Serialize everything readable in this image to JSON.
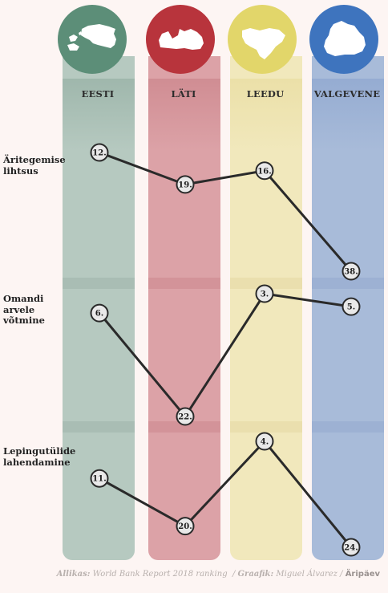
{
  "colors": {
    "eesti": "#5c8e78",
    "lati": "#b8343c",
    "leedu": "#e2d66a",
    "valgevene": "#3e74be"
  },
  "countries": [
    {
      "label": "EESTI",
      "icon": "estonia-map-icon"
    },
    {
      "label": "LÄTI",
      "icon": "latvia-map-icon"
    },
    {
      "label": "LEEDU",
      "icon": "lithuania-map-icon"
    },
    {
      "label": "VALGEVENE",
      "icon": "belarus-map-icon"
    }
  ],
  "chart_data": {
    "type": "line",
    "categories": [
      "EESTI",
      "LÄTI",
      "LEEDU",
      "VALGEVENE"
    ],
    "series": [
      {
        "name": "Äritegemise lihtsus",
        "values": [
          12,
          19,
          16,
          38
        ]
      },
      {
        "name": "Omandi arvele võtmine",
        "values": [
          6,
          22,
          3,
          5
        ]
      },
      {
        "name": "Lepingutülide lahendamine",
        "values": [
          11,
          20,
          4,
          24
        ]
      }
    ],
    "value_labels": [
      [
        "12.",
        "19.",
        "16.",
        "38."
      ],
      [
        "6.",
        "22.",
        "3.",
        "5."
      ],
      [
        "11.",
        "20.",
        "4.",
        "24."
      ]
    ],
    "row_labels": [
      [
        "Äritegemise",
        "lihtsus"
      ],
      [
        "Omandi",
        "arvele",
        "võtmine"
      ],
      [
        "Lepingutülide",
        "lahendamine"
      ]
    ],
    "y_reversed": true,
    "legend": "none",
    "grid": false
  },
  "footer": {
    "source_label": "Allikas:",
    "source_text": "World Bank Report 2018 ranking",
    "graphic_label": "Graafik:",
    "graphic_text": "Miguel Álvarez",
    "brand": "Äripäev"
  }
}
